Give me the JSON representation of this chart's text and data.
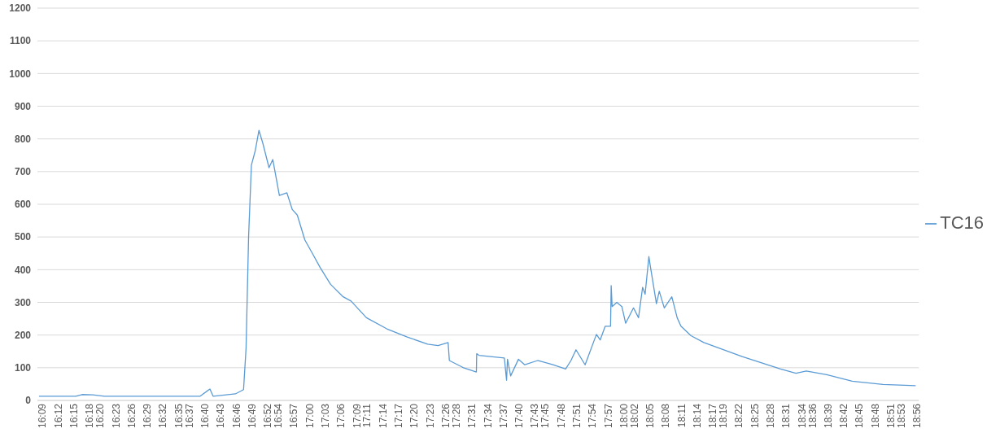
{
  "chart_data": {
    "type": "line",
    "x": [
      16.15,
      16.267,
      16.287,
      16.321,
      16.358,
      16.663,
      16.694,
      16.704,
      16.775,
      16.801,
      16.809,
      16.817,
      16.826,
      16.838,
      16.85,
      16.862,
      16.882,
      16.894,
      16.915,
      16.939,
      16.956,
      16.972,
      16.996,
      17.021,
      17.045,
      17.078,
      17.118,
      17.143,
      17.192,
      17.257,
      17.322,
      17.387,
      17.42,
      17.452,
      17.456,
      17.493,
      17.501,
      17.542,
      17.543,
      17.55,
      17.631,
      17.638,
      17.641,
      17.651,
      17.676,
      17.696,
      17.737,
      17.786,
      17.826,
      17.843,
      17.859,
      17.888,
      17.924,
      17.936,
      17.952,
      17.969,
      17.971,
      17.974,
      17.989,
      18.005,
      18.017,
      18.042,
      18.058,
      18.071,
      18.079,
      18.091,
      18.095,
      18.115,
      18.124,
      18.14,
      18.164,
      18.181,
      18.193,
      18.225,
      18.266,
      18.388,
      18.51,
      18.559,
      18.592,
      18.657,
      18.738,
      18.836,
      18.94
    ],
    "series": [
      {
        "name": "TC16",
        "color": "#5b9bd5",
        "values": [
          13,
          13,
          18,
          17,
          13,
          13,
          35,
          13,
          20,
          33,
          160,
          499,
          720,
          763,
          826,
          788,
          712,
          737,
          627,
          635,
          584,
          567,
          491,
          448,
          406,
          355,
          317,
          304,
          253,
          219,
          194,
          172,
          168,
          177,
          122,
          104,
          100,
          87,
          143,
          138,
          130,
          62,
          126,
          75,
          126,
          109,
          122,
          109,
          96,
          122,
          155,
          109,
          202,
          185,
          227,
          227,
          351,
          287,
          300,
          287,
          236,
          283,
          253,
          346,
          325,
          440,
          414,
          296,
          334,
          283,
          317,
          253,
          227,
          198,
          177,
          134,
          96,
          83,
          90,
          79,
          59,
          49,
          45
        ]
      }
    ],
    "xlim": [
      16.145,
      18.95
    ],
    "xticks": [
      {
        "value": 16.15,
        "label": "16:09"
      },
      {
        "value": 16.2,
        "label": "16:12"
      },
      {
        "value": 16.25,
        "label": "16:15"
      },
      {
        "value": 16.3,
        "label": "16:18"
      },
      {
        "value": 16.3333,
        "label": "16:20"
      },
      {
        "value": 16.3833,
        "label": "16:23"
      },
      {
        "value": 16.4333,
        "label": "16:26"
      },
      {
        "value": 16.4833,
        "label": "16:29"
      },
      {
        "value": 16.5333,
        "label": "16:32"
      },
      {
        "value": 16.5833,
        "label": "16:35"
      },
      {
        "value": 16.6167,
        "label": "16:37"
      },
      {
        "value": 16.6667,
        "label": "16:40"
      },
      {
        "value": 16.7167,
        "label": "16:43"
      },
      {
        "value": 16.7667,
        "label": "16:46"
      },
      {
        "value": 16.8167,
        "label": "16:49"
      },
      {
        "value": 16.8667,
        "label": "16:52"
      },
      {
        "value": 16.9,
        "label": "16:54"
      },
      {
        "value": 16.95,
        "label": "16:57"
      },
      {
        "value": 17,
        "label": "17:00"
      },
      {
        "value": 17.05,
        "label": "17:03"
      },
      {
        "value": 17.1,
        "label": "17:06"
      },
      {
        "value": 17.15,
        "label": "17:09"
      },
      {
        "value": 17.1833,
        "label": "17:11"
      },
      {
        "value": 17.2333,
        "label": "17:14"
      },
      {
        "value": 17.2833,
        "label": "17:17"
      },
      {
        "value": 17.3333,
        "label": "17:20"
      },
      {
        "value": 17.3833,
        "label": "17:23"
      },
      {
        "value": 17.4333,
        "label": "17:26"
      },
      {
        "value": 17.4667,
        "label": "17:28"
      },
      {
        "value": 17.5167,
        "label": "17:31"
      },
      {
        "value": 17.5667,
        "label": "17:34"
      },
      {
        "value": 17.6167,
        "label": "17:37"
      },
      {
        "value": 17.6667,
        "label": "17:40"
      },
      {
        "value": 17.7167,
        "label": "17:43"
      },
      {
        "value": 17.75,
        "label": "17:45"
      },
      {
        "value": 17.8,
        "label": "17:48"
      },
      {
        "value": 17.85,
        "label": "17:51"
      },
      {
        "value": 17.9,
        "label": "17:54"
      },
      {
        "value": 17.95,
        "label": "17:57"
      },
      {
        "value": 18,
        "label": "18:00"
      },
      {
        "value": 18.0333,
        "label": "18:02"
      },
      {
        "value": 18.0833,
        "label": "18:05"
      },
      {
        "value": 18.1333,
        "label": "18:08"
      },
      {
        "value": 18.1833,
        "label": "18:11"
      },
      {
        "value": 18.2333,
        "label": "18:14"
      },
      {
        "value": 18.2833,
        "label": "18:17"
      },
      {
        "value": 18.3167,
        "label": "18:19"
      },
      {
        "value": 18.3667,
        "label": "18:22"
      },
      {
        "value": 18.4167,
        "label": "18:25"
      },
      {
        "value": 18.4667,
        "label": "18:28"
      },
      {
        "value": 18.5167,
        "label": "18:31"
      },
      {
        "value": 18.5667,
        "label": "18:34"
      },
      {
        "value": 18.6,
        "label": "18:36"
      },
      {
        "value": 18.65,
        "label": "18:39"
      },
      {
        "value": 18.7,
        "label": "18:42"
      },
      {
        "value": 18.75,
        "label": "18:45"
      },
      {
        "value": 18.8,
        "label": "18:48"
      },
      {
        "value": 18.85,
        "label": "18:51"
      },
      {
        "value": 18.8833,
        "label": "18:53"
      },
      {
        "value": 18.9333,
        "label": "18:56"
      }
    ],
    "ylim": [
      0,
      1200
    ],
    "yticks": [
      0,
      100,
      200,
      300,
      400,
      500,
      600,
      700,
      800,
      900,
      1000,
      1100,
      1200
    ],
    "grid": "y",
    "legend": "right",
    "marker": "none",
    "line_style": "solid"
  }
}
